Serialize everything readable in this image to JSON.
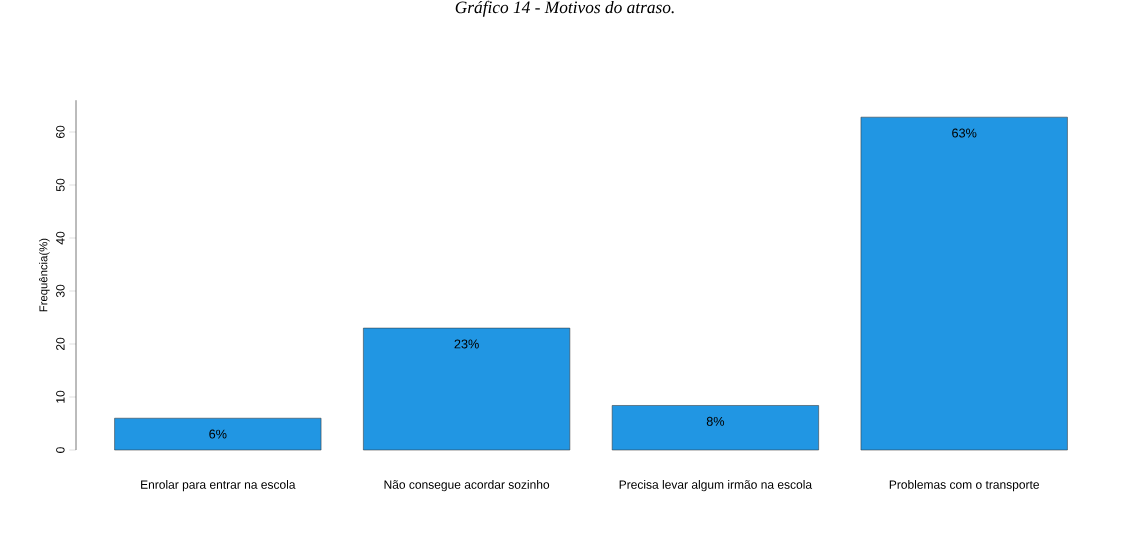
{
  "chart_data": {
    "type": "bar",
    "title": "Gráfico 14 - Motivos do atraso.",
    "ylabel": "Frequência(%)",
    "categories": [
      "Enrolar para entrar na escola",
      "Não consegue acordar sozinho",
      "Precisa levar algum irmão na escola",
      "Problemas com o transporte"
    ],
    "values": [
      6,
      23,
      8.4,
      62.8
    ],
    "value_labels": [
      "6%",
      "23%",
      "8%",
      "63%"
    ],
    "color": "#2196e3",
    "ylim": [
      0,
      66
    ],
    "yticks": [
      0,
      10,
      20,
      30,
      40,
      50,
      60
    ]
  }
}
